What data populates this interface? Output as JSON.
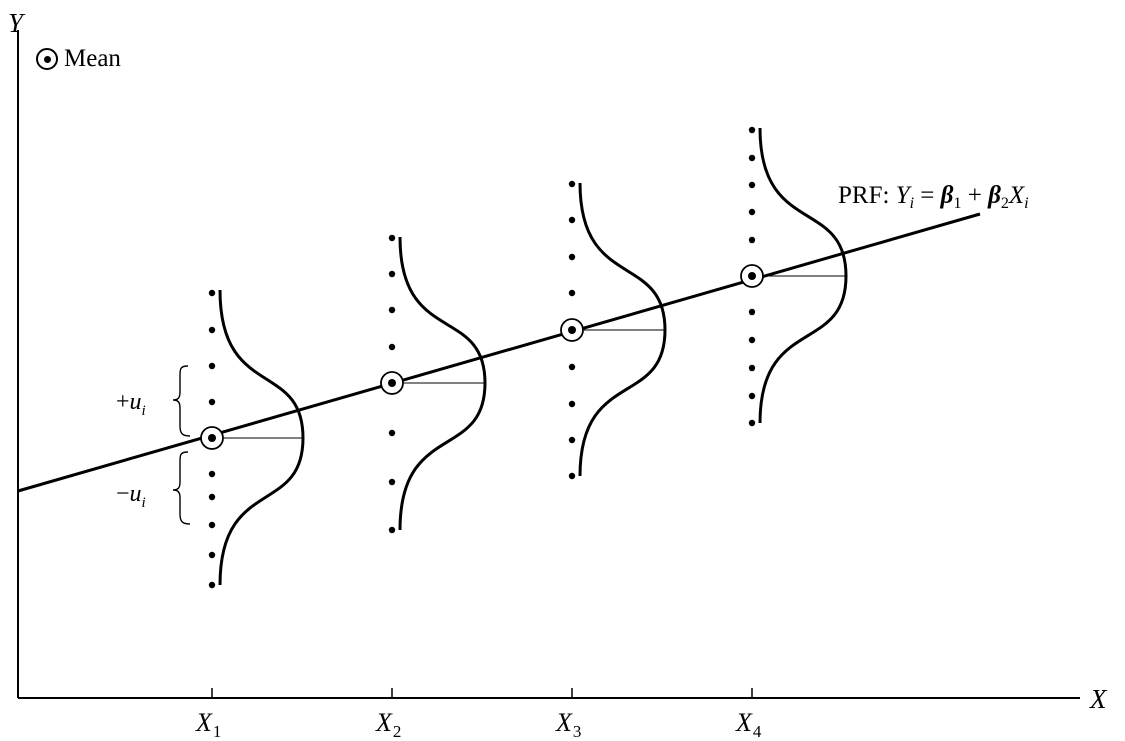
{
  "axes": {
    "y_label": "Y",
    "x_label": "X"
  },
  "legend": {
    "label": "Mean"
  },
  "regression_line": {
    "label_prefix": "PRF: ",
    "Y": "Y",
    "i": "i",
    "eq": " = ",
    "b1": "β",
    "one": "1",
    "plus": " + ",
    "b2": "β",
    "two": "2",
    "X": "X",
    "i2": "i"
  },
  "x_ticks": [
    {
      "symbol": "X",
      "sub": "1"
    },
    {
      "symbol": "X",
      "sub": "2"
    },
    {
      "symbol": "X",
      "sub": "3"
    },
    {
      "symbol": "X",
      "sub": "4"
    }
  ],
  "error_labels": {
    "plus": {
      "sign": "+",
      "u": "u",
      "i": "i"
    },
    "minus": {
      "sign": "−",
      "u": "u",
      "i": "i"
    }
  }
}
